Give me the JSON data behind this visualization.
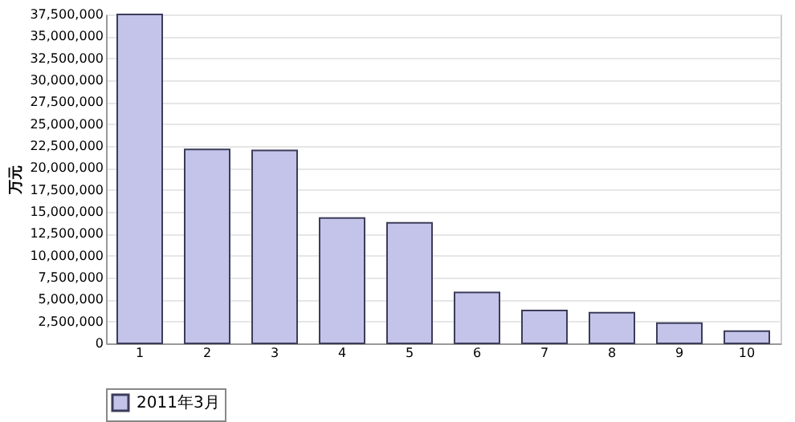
{
  "chart_data": {
    "type": "bar",
    "ylabel": "万元",
    "categories": [
      "1",
      "2",
      "3",
      "4",
      "5",
      "6",
      "7",
      "8",
      "9",
      "10"
    ],
    "series": [
      {
        "name": "2011年3月",
        "color": "#c4c4ea",
        "values": [
          37500000,
          22100000,
          22000000,
          14300000,
          13750000,
          5800000,
          3750000,
          3500000,
          2300000,
          1400000
        ]
      }
    ],
    "ylim": [
      0,
      37500000
    ],
    "yticks": [
      {
        "value": 0,
        "label": "0"
      },
      {
        "value": 2500000,
        "label": "2,500,000"
      },
      {
        "value": 5000000,
        "label": "5,000,000"
      },
      {
        "value": 7500000,
        "label": "7,500,000"
      },
      {
        "value": 10000000,
        "label": "10,000,000"
      },
      {
        "value": 12500000,
        "label": "12,500,000"
      },
      {
        "value": 15000000,
        "label": "15,000,000"
      },
      {
        "value": 17500000,
        "label": "17,500,000"
      },
      {
        "value": 20000000,
        "label": "20,000,000"
      },
      {
        "value": 22500000,
        "label": "22,500,000"
      },
      {
        "value": 25000000,
        "label": "25,000,000"
      },
      {
        "value": 27500000,
        "label": "27,500,000"
      },
      {
        "value": 30000000,
        "label": "30,000,000"
      },
      {
        "value": 32500000,
        "label": "32,500,000"
      },
      {
        "value": 35000000,
        "label": "35,000,000"
      },
      {
        "value": 37500000,
        "label": "37,500,000"
      }
    ],
    "grid": "y",
    "legend": "bottom"
  }
}
